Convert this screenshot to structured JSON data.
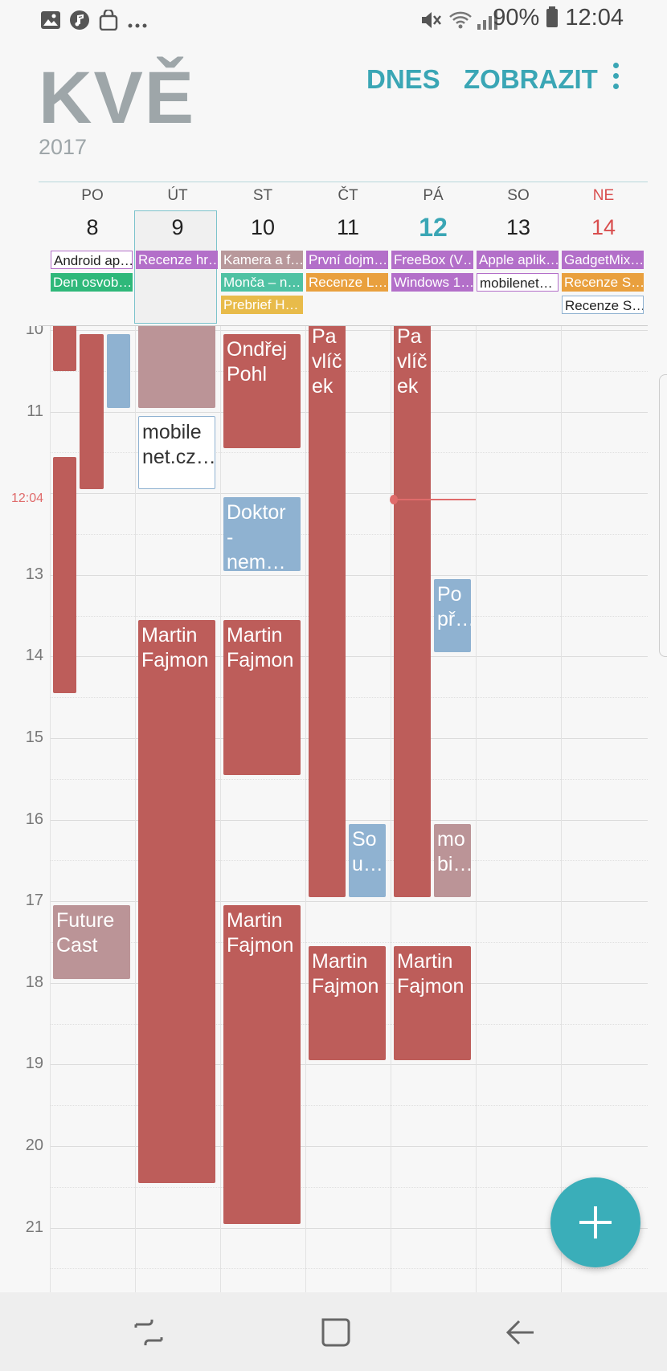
{
  "status": {
    "battery": "90%",
    "time": "12:04"
  },
  "header": {
    "month": "KVĚ",
    "year": "2017",
    "today_label": "DNES",
    "view_label": "ZOBRAZIT"
  },
  "days": [
    {
      "dow": "PO",
      "num": "8"
    },
    {
      "dow": "ÚT",
      "num": "9"
    },
    {
      "dow": "ST",
      "num": "10"
    },
    {
      "dow": "ČT",
      "num": "11"
    },
    {
      "dow": "PÁ",
      "num": "12"
    },
    {
      "dow": "SO",
      "num": "13"
    },
    {
      "dow": "NE",
      "num": "14"
    }
  ],
  "all_day": [
    {
      "day": 0,
      "row": 0,
      "title": "Android ap…",
      "color": "#ffffff",
      "text": "#222222",
      "border": "#b36fc9"
    },
    {
      "day": 0,
      "row": 1,
      "title": "Den osvob…",
      "color": "#2fb87a"
    },
    {
      "day": 1,
      "row": 0,
      "title": "Recenze hr…",
      "color": "#b36fc9"
    },
    {
      "day": 2,
      "row": 0,
      "title": "Kamera a f…",
      "color": "#b8989b"
    },
    {
      "day": 2,
      "row": 1,
      "title": "Monča – n…",
      "color": "#4fc2a3"
    },
    {
      "day": 2,
      "row": 2,
      "title": "Prebrief H…",
      "color": "#e8bb4a"
    },
    {
      "day": 3,
      "row": 0,
      "title": "První dojm…",
      "color": "#b36fc9"
    },
    {
      "day": 3,
      "row": 1,
      "title": "Recenze L…",
      "color": "#e9a03e"
    },
    {
      "day": 4,
      "row": 0,
      "title": "FreeBox (V…",
      "color": "#b36fc9"
    },
    {
      "day": 4,
      "row": 1,
      "title": "Windows 1…",
      "color": "#b36fc9"
    },
    {
      "day": 5,
      "row": 0,
      "title": "Apple aplik…",
      "color": "#b36fc9"
    },
    {
      "day": 5,
      "row": 1,
      "title": "mobilenet…",
      "color": "#ffffff",
      "text": "#222222",
      "border": "#b36fc9"
    },
    {
      "day": 6,
      "row": 0,
      "title": "GadgetMix…",
      "color": "#b36fc9"
    },
    {
      "day": 6,
      "row": 1,
      "title": "Recenze S…",
      "color": "#e9a03e"
    },
    {
      "day": 6,
      "row": 2,
      "title": "Recenze S…",
      "color": "#ffffff",
      "text": "#222222",
      "border": "#8fb2d1"
    }
  ],
  "hour_labels": [
    "10",
    "11",
    "12:04",
    "13",
    "14",
    "15",
    "16",
    "17",
    "18",
    "19",
    "20",
    "21"
  ],
  "events": [
    {
      "day": 0,
      "start": 9.5,
      "end": 10.5,
      "lane": 0,
      "lanes": 3,
      "title": "",
      "color": "red"
    },
    {
      "day": 0,
      "start": 10.05,
      "end": 11.95,
      "lane": 1,
      "lanes": 3,
      "title": "",
      "color": "red"
    },
    {
      "day": 0,
      "start": 10.05,
      "end": 10.95,
      "lane": 2,
      "lanes": 3,
      "title": "",
      "color": "blue"
    },
    {
      "day": 0,
      "start": 11.55,
      "end": 14.45,
      "lane": 0,
      "lanes": 3,
      "title": "",
      "color": "red"
    },
    {
      "day": 0,
      "start": 17.05,
      "end": 17.95,
      "lane": 0,
      "lanes": 1,
      "title": "Future Cast",
      "color": "pink"
    },
    {
      "day": 1,
      "start": 9.5,
      "end": 10.95,
      "lane": 0,
      "lanes": 1,
      "title": "",
      "color": "pink"
    },
    {
      "day": 1,
      "start": 11.05,
      "end": 11.95,
      "lane": 0,
      "lanes": 1,
      "title": "mobile net.cz…",
      "color": "white"
    },
    {
      "day": 1,
      "start": 13.55,
      "end": 20.45,
      "lane": 0,
      "lanes": 1,
      "title": "Martin Fajmon",
      "color": "red"
    },
    {
      "day": 2,
      "start": 10.05,
      "end": 11.45,
      "lane": 0,
      "lanes": 1,
      "title": "Ondřej Pohl",
      "color": "red"
    },
    {
      "day": 2,
      "start": 12.05,
      "end": 12.95,
      "lane": 0,
      "lanes": 1,
      "title": "Doktor - nem…",
      "color": "blue"
    },
    {
      "day": 2,
      "start": 13.55,
      "end": 15.45,
      "lane": 0,
      "lanes": 1,
      "title": "Martin Fajmon",
      "color": "red"
    },
    {
      "day": 2,
      "start": 17.05,
      "end": 20.95,
      "lane": 0,
      "lanes": 1,
      "title": "Martin Fajmon",
      "color": "red"
    },
    {
      "day": 3,
      "start": 9.5,
      "end": 16.95,
      "lane": 0,
      "lanes": 2,
      "title": "Pa vlíč ek",
      "color": "red"
    },
    {
      "day": 3,
      "start": 16.05,
      "end": 16.95,
      "lane": 1,
      "lanes": 2,
      "title": "So u…",
      "color": "blue"
    },
    {
      "day": 3,
      "start": 17.55,
      "end": 18.95,
      "lane": 0,
      "lanes": 1,
      "title": "Martin Fajmon",
      "color": "red"
    },
    {
      "day": 4,
      "start": 9.5,
      "end": 16.95,
      "lane": 0,
      "lanes": 2,
      "title": "Pa vlíč ek",
      "color": "red"
    },
    {
      "day": 4,
      "start": 13.05,
      "end": 13.95,
      "lane": 1,
      "lanes": 2,
      "title": "Po př…",
      "color": "blue"
    },
    {
      "day": 4,
      "start": 16.05,
      "end": 16.95,
      "lane": 1,
      "lanes": 2,
      "title": "mo bi…",
      "color": "pink"
    },
    {
      "day": 4,
      "start": 17.55,
      "end": 18.95,
      "lane": 0,
      "lanes": 1,
      "title": "Martin Fajmon",
      "color": "red"
    }
  ],
  "icons": [
    "gallery-icon",
    "music-icon",
    "bag-icon",
    "more-notifications-icon",
    "mute-icon",
    "wifi-icon",
    "signal-icon",
    "battery-icon",
    "overflow-menu-icon",
    "add-icon",
    "recents-icon",
    "home-icon",
    "back-icon"
  ]
}
